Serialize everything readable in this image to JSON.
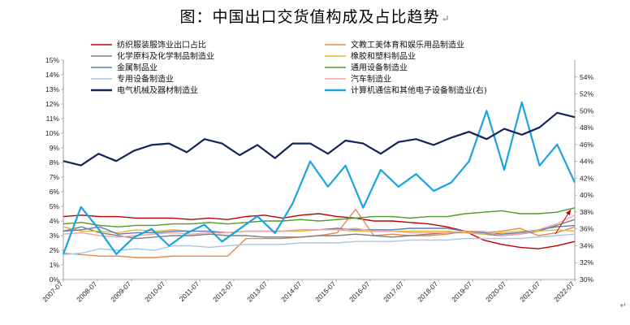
{
  "chart_data": {
    "type": "line",
    "title": "图：中国出口交货值构成及占比趋势",
    "title_mark": "↵",
    "x_ticks": [
      "2007-07",
      "2008-07",
      "2009-07",
      "2010-07",
      "2011-07",
      "2012-07",
      "2013-07",
      "2014-07",
      "2015-07",
      "2016-07",
      "2017-07",
      "2018-07",
      "2019-07",
      "2020-07",
      "2021-07",
      "2022-07"
    ],
    "x_range": [
      "2007-07",
      "2022-07"
    ],
    "left_axis": {
      "ylim": [
        0,
        15
      ],
      "ticks": [
        "0%",
        "1%",
        "2%",
        "3%",
        "4%",
        "5%",
        "6%",
        "7%",
        "8%",
        "9%",
        "10%",
        "11%",
        "12%",
        "13%",
        "14%",
        "15%"
      ]
    },
    "right_axis": {
      "ylim": [
        30,
        56
      ],
      "ticks": [
        "30%",
        "32%",
        "34%",
        "36%",
        "38%",
        "40%",
        "42%",
        "44%",
        "46%",
        "48%",
        "50%",
        "52%",
        "54%"
      ]
    },
    "series": [
      {
        "name": "纺织服装服饰业出口占比",
        "color": "#c00000",
        "axis": "left",
        "values": [
          4.3,
          4.4,
          4.3,
          4.3,
          4.2,
          4.2,
          4.2,
          4.1,
          4.2,
          4.1,
          4.3,
          4.4,
          4.2,
          4.4,
          4.5,
          4.3,
          4.2,
          4.0,
          4.0,
          3.9,
          3.8,
          3.6,
          3.3,
          2.7,
          2.4,
          2.2,
          2.1,
          2.3,
          2.6
        ]
      },
      {
        "name": "文教工美体育和娱乐用品制造业",
        "color": "#e8894a",
        "axis": "left",
        "values": [
          1.8,
          1.7,
          1.6,
          1.6,
          1.5,
          1.5,
          1.6,
          1.6,
          1.6,
          1.6,
          2.8,
          2.8,
          2.8,
          2.9,
          3.0,
          3.2,
          4.8,
          3.0,
          3.1,
          3.0,
          3.0,
          3.1,
          3.3,
          3.2,
          3.3,
          3.5,
          3.0,
          3.2,
          3.6
        ]
      },
      {
        "name": "化学原料及化学制品制造业",
        "color": "#7f7f7f",
        "axis": "left",
        "values": [
          3.3,
          3.6,
          3.2,
          3.0,
          2.8,
          2.9,
          3.0,
          3.0,
          3.1,
          3.0,
          3.0,
          2.9,
          2.9,
          2.9,
          3.0,
          3.0,
          3.1,
          3.0,
          2.9,
          3.0,
          3.1,
          3.2,
          3.2,
          3.1,
          3.0,
          3.1,
          3.3,
          3.7,
          4.1
        ]
      },
      {
        "name": "橡胶和塑料制品业",
        "color": "#e3b93b",
        "axis": "left",
        "values": [
          3.6,
          3.3,
          3.3,
          3.2,
          3.4,
          3.3,
          3.4,
          3.3,
          3.3,
          3.2,
          3.3,
          3.3,
          3.3,
          3.3,
          3.4,
          3.4,
          3.3,
          3.3,
          3.3,
          3.3,
          3.3,
          3.3,
          3.2,
          3.1,
          3.2,
          3.3,
          3.3,
          3.4,
          3.3
        ]
      },
      {
        "name": "金属制品业",
        "color": "#5a7fb5",
        "axis": "left",
        "values": [
          3.3,
          3.4,
          3.6,
          3.1,
          3.2,
          3.2,
          3.3,
          3.3,
          3.3,
          3.2,
          3.3,
          3.3,
          3.3,
          3.4,
          3.4,
          3.5,
          3.4,
          3.4,
          3.4,
          3.5,
          3.5,
          3.5,
          3.3,
          3.2,
          3.1,
          3.2,
          3.4,
          3.6,
          3.7
        ]
      },
      {
        "name": "通用设备制造业",
        "color": "#4e9a2a",
        "axis": "left",
        "values": [
          3.8,
          3.9,
          3.7,
          3.6,
          3.7,
          3.7,
          3.8,
          3.8,
          3.9,
          3.8,
          3.9,
          4.0,
          4.0,
          4.1,
          4.0,
          4.1,
          4.2,
          4.3,
          4.3,
          4.2,
          4.3,
          4.3,
          4.5,
          4.6,
          4.7,
          4.5,
          4.5,
          4.6,
          4.9
        ]
      },
      {
        "name": "专用设备制造业",
        "color": "#a9c4e6",
        "axis": "left",
        "values": [
          1.7,
          1.8,
          2.1,
          2.0,
          2.1,
          2.0,
          2.3,
          2.3,
          2.2,
          2.3,
          2.4,
          2.4,
          2.4,
          2.5,
          2.5,
          2.5,
          2.6,
          2.6,
          2.6,
          2.7,
          2.7,
          2.7,
          2.8,
          2.8,
          2.8,
          2.8,
          2.9,
          3.0,
          3.1
        ]
      },
      {
        "name": "汽车制造业",
        "color": "#f4a3a3",
        "axis": "left",
        "values": [
          3.1,
          3.2,
          3.0,
          2.9,
          3.0,
          3.1,
          3.2,
          3.1,
          3.2,
          3.2,
          3.3,
          3.3,
          3.3,
          3.4,
          3.4,
          3.4,
          3.5,
          3.3,
          3.3,
          3.2,
          3.2,
          3.2,
          3.3,
          3.3,
          3.0,
          3.1,
          3.4,
          3.8,
          4.4
        ]
      },
      {
        "name": "电气机械及器材制造业",
        "color": "#12245a",
        "axis": "left",
        "values": [
          8.1,
          7.8,
          8.6,
          8.1,
          8.8,
          9.2,
          9.3,
          8.7,
          9.6,
          9.3,
          8.5,
          9.2,
          8.3,
          9.3,
          9.3,
          8.6,
          9.5,
          9.3,
          8.6,
          9.4,
          9.6,
          9.2,
          9.7,
          10.1,
          9.6,
          10.3,
          9.9,
          10.4,
          11.4,
          11.1
        ]
      },
      {
        "name": "计算机通信和其他电子设备制造业(右)",
        "color": "#1aa3e0",
        "axis": "right",
        "values": [
          33.0,
          38.6,
          36.0,
          33.0,
          35.0,
          36.0,
          34.0,
          35.5,
          36.5,
          34.5,
          36.0,
          37.5,
          35.5,
          39.0,
          44.0,
          41.0,
          43.5,
          38.5,
          43.0,
          41.0,
          42.5,
          40.5,
          41.5,
          44.0,
          50.0,
          43.0,
          51.0,
          43.5,
          46.0,
          41.5
        ]
      }
    ]
  }
}
